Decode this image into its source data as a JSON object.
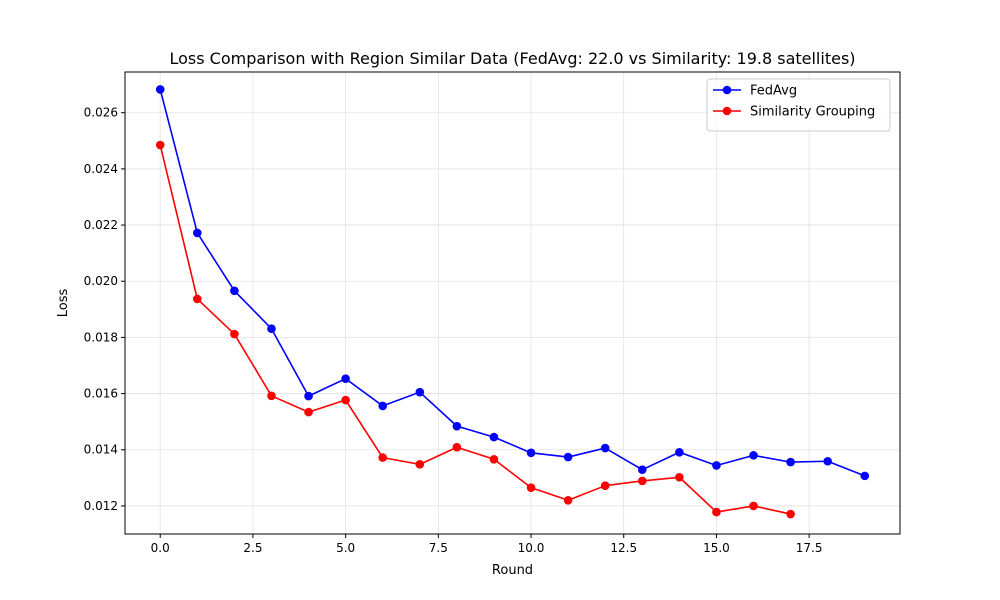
{
  "chart_data": {
    "type": "line",
    "title": "Loss Comparison with Region Similar Data (FedAvg: 22.0 vs Similarity: 19.8 satellites)",
    "xlabel": "Round",
    "ylabel": "Loss",
    "xlim": [
      -0.95,
      19.95
    ],
    "ylim": [
      0.011,
      0.02745
    ],
    "xticks": [
      0.0,
      2.5,
      5.0,
      7.5,
      10.0,
      12.5,
      15.0,
      17.5
    ],
    "xtick_labels": [
      "0.0",
      "2.5",
      "5.0",
      "7.5",
      "10.0",
      "12.5",
      "15.0",
      "17.5"
    ],
    "yticks": [
      0.012,
      0.014,
      0.016,
      0.018,
      0.02,
      0.022,
      0.024,
      0.026
    ],
    "ytick_labels": [
      "0.012",
      "0.014",
      "0.016",
      "0.018",
      "0.020",
      "0.022",
      "0.024",
      "0.026"
    ],
    "grid": true,
    "legend_position": "top-right",
    "series": [
      {
        "name": "FedAvg",
        "color": "#0000ff",
        "marker": "circle",
        "x": [
          0,
          1,
          2,
          3,
          4,
          5,
          6,
          7,
          8,
          9,
          10,
          11,
          12,
          13,
          14,
          15,
          16,
          17,
          18,
          19
        ],
        "y": [
          0.02683,
          0.02172,
          0.01966,
          0.01831,
          0.01591,
          0.01653,
          0.01556,
          0.01605,
          0.01484,
          0.01445,
          0.01389,
          0.01374,
          0.01406,
          0.01329,
          0.01391,
          0.01344,
          0.0138,
          0.01356,
          0.01359,
          0.01307
        ]
      },
      {
        "name": "Similarity Grouping",
        "color": "#ff0000",
        "marker": "circle",
        "x": [
          0,
          1,
          2,
          3,
          4,
          5,
          6,
          7,
          8,
          9,
          10,
          11,
          12,
          13,
          14,
          15,
          16,
          17
        ],
        "y": [
          0.02485,
          0.01937,
          0.01812,
          0.01592,
          0.01534,
          0.01577,
          0.01372,
          0.01348,
          0.01409,
          0.01366,
          0.01265,
          0.0122,
          0.01272,
          0.01289,
          0.01302,
          0.01178,
          0.012,
          0.01171
        ]
      }
    ]
  }
}
